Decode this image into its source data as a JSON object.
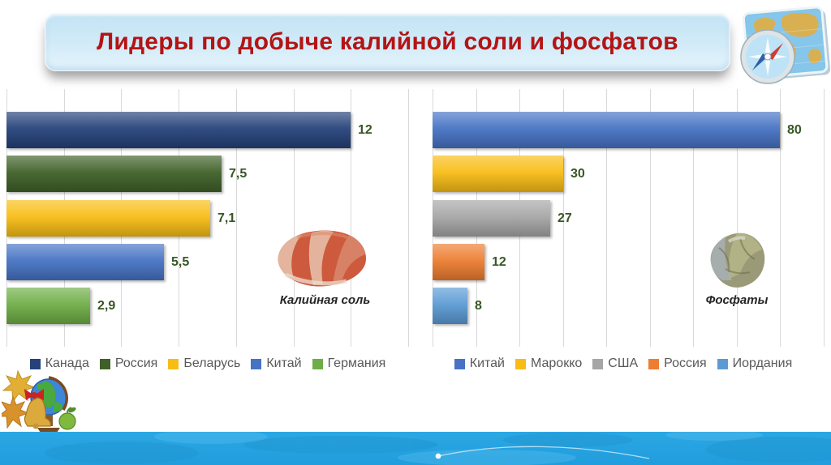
{
  "title": "Лидеры по добыче калийной соли и фосфатов",
  "colors": {
    "title_text": "#b41414",
    "banner_bg_top": "#c3e3f5",
    "banner_bg_bottom": "#e6f5fc",
    "value_label": "#375623",
    "legend_text": "#595959",
    "gridline": "#d9d9d9",
    "footer_band": "#2ba7e4"
  },
  "images": {
    "map_compass": "map-with-compass icon (top right)",
    "potash_rock": "red potash salt rock photo",
    "phosphate_rock": "grey-olive phosphate rock photo",
    "globe_clipart": "globe with autumn leaves, bell and apple (bottom left)"
  },
  "chart_data": [
    {
      "type": "bar",
      "orientation": "horizontal",
      "title": "Калийная соль",
      "categories": [
        "Канада",
        "Россия",
        "Беларусь",
        "Китай",
        "Германия"
      ],
      "values": [
        12,
        7.5,
        7.1,
        5.5,
        2.9
      ],
      "value_labels": [
        "12",
        "7,5",
        "7,1",
        "5,5",
        "2,9"
      ],
      "bar_colors": [
        "#25427a",
        "#3f6128",
        "#f8bd15",
        "#4673c4",
        "#6fae46"
      ],
      "xlim": [
        0,
        14
      ],
      "grid_step": 2,
      "grid": true,
      "legend_position": "bottom",
      "xlabel": "",
      "ylabel": ""
    },
    {
      "type": "bar",
      "orientation": "horizontal",
      "title": "Фосфаты",
      "categories": [
        "Китай",
        "Марокко",
        "США",
        "Россия",
        "Иордания"
      ],
      "values": [
        80,
        30,
        27,
        12,
        8
      ],
      "value_labels": [
        "80",
        "30",
        "27",
        "12",
        "8"
      ],
      "bar_colors": [
        "#4673c4",
        "#f8bd15",
        "#a6a6a6",
        "#ed7d31",
        "#5b9bd5"
      ],
      "xlim": [
        0,
        90
      ],
      "grid_step": 10,
      "grid": true,
      "legend_position": "bottom",
      "xlabel": "",
      "ylabel": ""
    }
  ]
}
